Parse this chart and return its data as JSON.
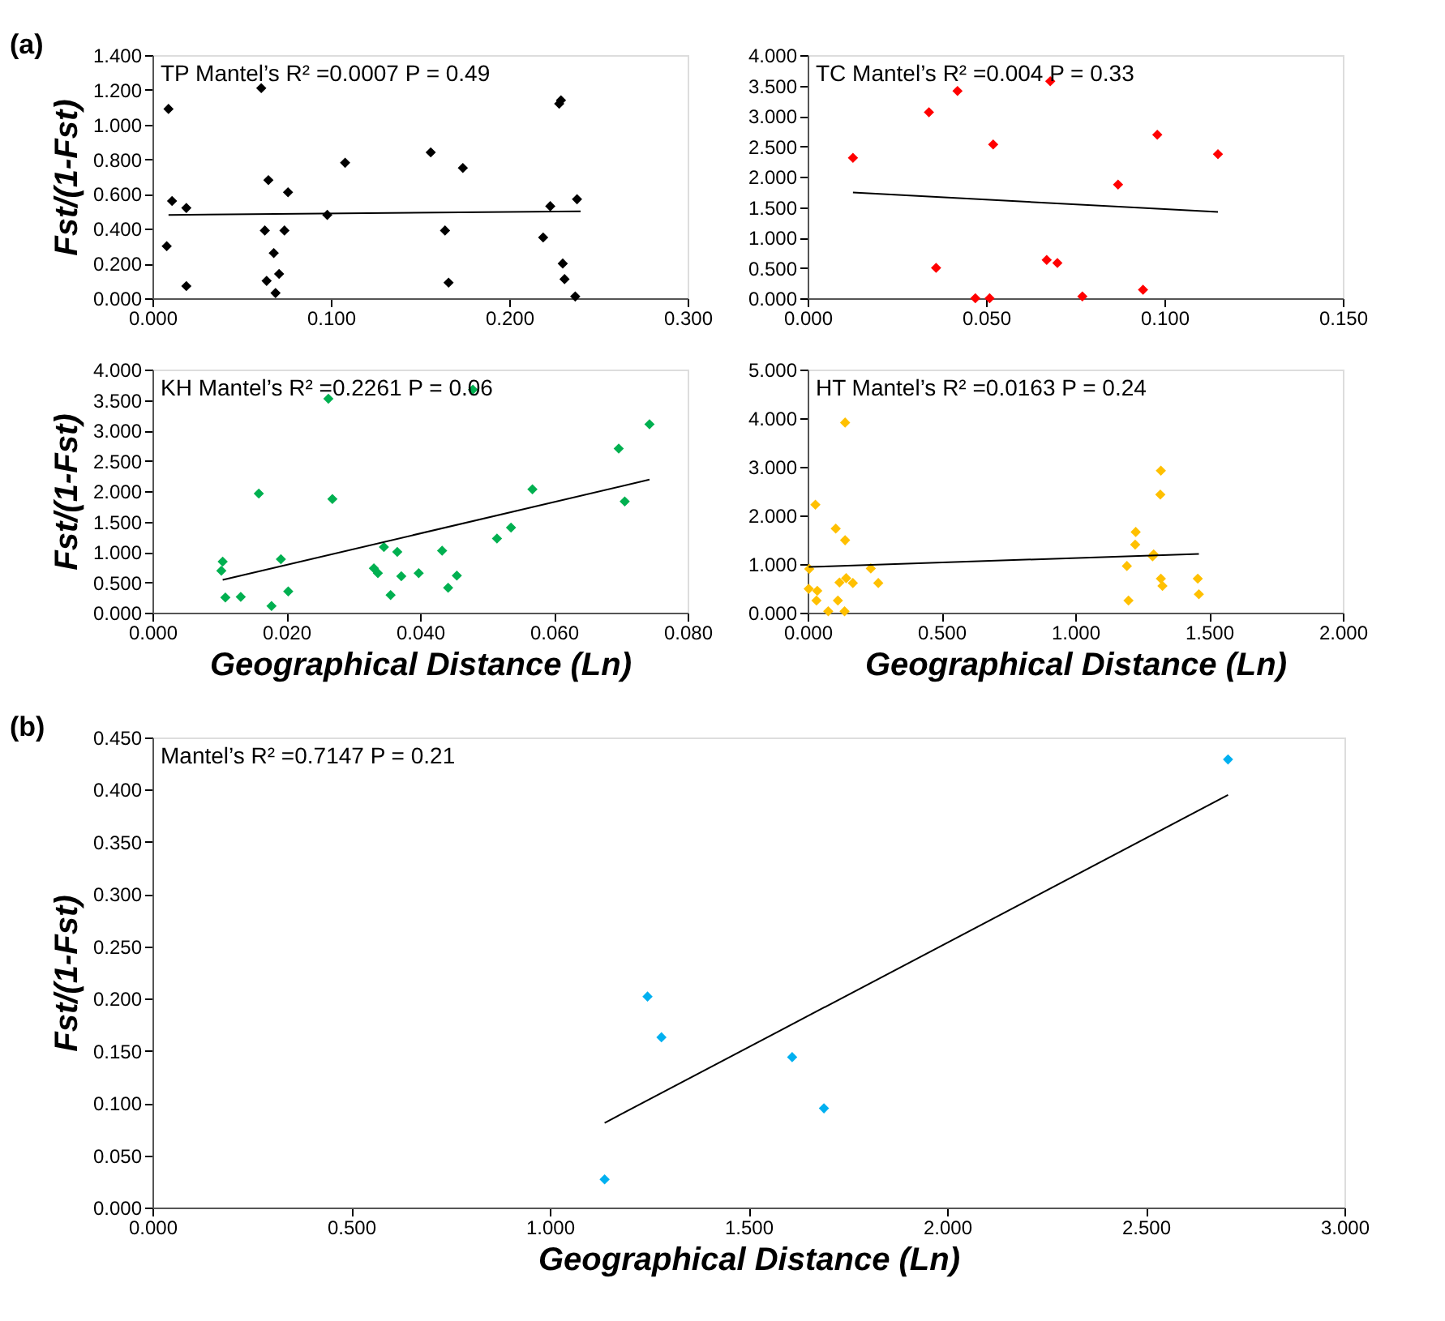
{
  "chart_data": [
    {
      "type": "scatter",
      "ylabel": "Fst/(1-Fst)",
      "annotations": [
        "(a)",
        "TP Mantel’s R² =0.0007 P = 0.49"
      ],
      "grid": false,
      "xlim": [
        0,
        0.3
      ],
      "xticks": [
        {
          "value": 0,
          "label": "0.000"
        },
        {
          "value": 0.1,
          "label": "0.100"
        },
        {
          "value": 0.2,
          "label": "0.200"
        },
        {
          "value": 0.3,
          "label": "0.300"
        }
      ],
      "ylim": [
        0,
        1.4
      ],
      "yticks": [
        {
          "value": 0,
          "label": "0.000"
        },
        {
          "value": 0.2,
          "label": "0.200"
        },
        {
          "value": 0.4,
          "label": "0.400"
        },
        {
          "value": 0.6,
          "label": "0.600"
        },
        {
          "value": 0.8,
          "label": "0.800"
        },
        {
          "value": 1.0,
          "label": "1.000"
        },
        {
          "value": 1.2,
          "label": "1.200"
        },
        {
          "value": 1.4,
          "label": "1.400"
        }
      ],
      "series": [
        {
          "marker": "diamond",
          "color": "#000000",
          "x": [
            0.008,
            0.009,
            0.011,
            0.019,
            0.019,
            0.061,
            0.065,
            0.063,
            0.068,
            0.064,
            0.071,
            0.069,
            0.074,
            0.076,
            0.098,
            0.108,
            0.156,
            0.174,
            0.164,
            0.166,
            0.219,
            0.223,
            0.228,
            0.229,
            0.23,
            0.231,
            0.238,
            0.237
          ],
          "values": [
            0.3,
            1.09,
            0.56,
            0.52,
            0.07,
            1.21,
            0.68,
            0.39,
            0.26,
            0.1,
            0.14,
            0.03,
            0.39,
            0.61,
            0.48,
            0.78,
            0.84,
            0.75,
            0.39,
            0.09,
            0.35,
            0.53,
            1.12,
            1.14,
            0.2,
            0.11,
            0.57,
            0.01
          ]
        },
        {
          "type": "line",
          "marker": "none",
          "color": "#000000",
          "x": [
            0.009,
            0.24
          ],
          "values": [
            0.48,
            0.5
          ]
        }
      ]
    },
    {
      "type": "scatter",
      "annotations": [
        "TC Mantel’s R² =0.004 P = 0.33"
      ],
      "grid": false,
      "xlim": [
        0,
        0.15
      ],
      "xticks": [
        {
          "value": 0,
          "label": "0.000"
        },
        {
          "value": 0.05,
          "label": "0.050"
        },
        {
          "value": 0.1,
          "label": "0.100"
        },
        {
          "value": 0.15,
          "label": "0.150"
        }
      ],
      "ylim": [
        0,
        4
      ],
      "yticks": [
        {
          "value": 0,
          "label": "0.000"
        },
        {
          "value": 0.5,
          "label": "0.500"
        },
        {
          "value": 1,
          "label": "1.000"
        },
        {
          "value": 1.5,
          "label": "1.500"
        },
        {
          "value": 2,
          "label": "2.000"
        },
        {
          "value": 2.5,
          "label": "2.500"
        },
        {
          "value": 3,
          "label": "3.000"
        },
        {
          "value": 3.5,
          "label": "3.500"
        },
        {
          "value": 4,
          "label": "4.000"
        }
      ],
      "series": [
        {
          "marker": "diamond",
          "color": "#ff0000",
          "x": [
            0.0127,
            0.034,
            0.042,
            0.036,
            0.052,
            0.047,
            0.051,
            0.068,
            0.067,
            0.07,
            0.077,
            0.087,
            0.094,
            0.098,
            0.115
          ],
          "values": [
            2.31,
            3.06,
            3.41,
            0.5,
            2.53,
            0.0,
            0.0,
            3.57,
            0.63,
            0.58,
            0.03,
            1.87,
            0.14,
            2.69,
            2.37
          ]
        },
        {
          "type": "line",
          "marker": "none",
          "color": "#000000",
          "x": [
            0.0127,
            0.115
          ],
          "values": [
            1.74,
            1.42
          ]
        }
      ]
    },
    {
      "type": "scatter",
      "xlabel": "Geographical Distance (Ln)",
      "ylabel": "Fst/(1-Fst)",
      "annotations": [
        "KH Mantel’s R² =0.2261 P = 0.06"
      ],
      "grid": false,
      "xlim": [
        0,
        0.08
      ],
      "xticks": [
        {
          "value": 0,
          "label": "0.000"
        },
        {
          "value": 0.02,
          "label": "0.020"
        },
        {
          "value": 0.04,
          "label": "0.040"
        },
        {
          "value": 0.06,
          "label": "0.060"
        },
        {
          "value": 0.08,
          "label": "0.080"
        }
      ],
      "ylim": [
        0,
        4
      ],
      "yticks": [
        {
          "value": 0,
          "label": "0.000"
        },
        {
          "value": 0.5,
          "label": "0.500"
        },
        {
          "value": 1,
          "label": "1.000"
        },
        {
          "value": 1.5,
          "label": "1.500"
        },
        {
          "value": 2,
          "label": "2.000"
        },
        {
          "value": 2.5,
          "label": "2.500"
        },
        {
          "value": 3,
          "label": "3.000"
        },
        {
          "value": 3.5,
          "label": "3.500"
        },
        {
          "value": 4,
          "label": "4.000"
        }
      ],
      "series": [
        {
          "marker": "diamond",
          "color": "#00b050",
          "x": [
            0.0105,
            0.0103,
            0.0109,
            0.0132,
            0.0159,
            0.0178,
            0.0192,
            0.0203,
            0.0263,
            0.0269,
            0.0331,
            0.0337,
            0.0346,
            0.0356,
            0.0366,
            0.0372,
            0.0398,
            0.0433,
            0.0442,
            0.0455,
            0.0479,
            0.0515,
            0.0536,
            0.0568,
            0.0697,
            0.0706,
            0.0743
          ],
          "values": [
            0.84,
            0.69,
            0.25,
            0.26,
            1.96,
            0.11,
            0.88,
            0.35,
            3.52,
            1.87,
            0.73,
            0.65,
            1.08,
            0.29,
            1.0,
            0.6,
            0.65,
            1.02,
            0.41,
            0.61,
            3.67,
            1.22,
            1.4,
            2.03,
            2.7,
            1.83,
            3.1
          ]
        },
        {
          "type": "line",
          "marker": "none",
          "color": "#000000",
          "x": [
            0.0105,
            0.0743
          ],
          "values": [
            0.54,
            2.19
          ]
        }
      ]
    },
    {
      "type": "scatter",
      "xlabel": "Geographical Distance (Ln)",
      "annotations": [
        "HT Mantel’s R² =0.0163 P = 0.24"
      ],
      "grid": false,
      "xlim": [
        0,
        2
      ],
      "xticks": [
        {
          "value": 0,
          "label": "0.000"
        },
        {
          "value": 0.5,
          "label": "0.500"
        },
        {
          "value": 1,
          "label": "1.000"
        },
        {
          "value": 1.5,
          "label": "1.500"
        },
        {
          "value": 2,
          "label": "2.000"
        }
      ],
      "ylim": [
        0,
        5
      ],
      "yticks": [
        {
          "value": 0,
          "label": "0.000"
        },
        {
          "value": 1,
          "label": "1.000"
        },
        {
          "value": 2,
          "label": "2.000"
        },
        {
          "value": 3,
          "label": "3.000"
        },
        {
          "value": 4,
          "label": "4.000"
        },
        {
          "value": 5,
          "label": "5.000"
        }
      ],
      "series": [
        {
          "marker": "diamond",
          "color": "#ffc000",
          "x": [
            0.004,
            0.006,
            0.029,
            0.036,
            0.033,
            0.077,
            0.105,
            0.113,
            0.119,
            0.14,
            0.14,
            0.144,
            0.138,
            0.169,
            0.236,
            0.264,
            1.193,
            1.199,
            1.224,
            1.226,
            1.289,
            1.293,
            1.32,
            1.318,
            1.32,
            1.326,
            1.458,
            1.462
          ],
          "values": [
            0.49,
            0.9,
            2.22,
            0.45,
            0.25,
            0.03,
            1.73,
            0.25,
            0.62,
            3.91,
            1.49,
            0.71,
            0.03,
            0.61,
            0.91,
            0.61,
            0.96,
            0.25,
            1.4,
            1.66,
            1.16,
            1.2,
            2.92,
            2.43,
            0.7,
            0.55,
            0.7,
            0.38
          ]
        },
        {
          "type": "line",
          "marker": "none",
          "color": "#000000",
          "x": [
            0.004,
            1.462
          ],
          "values": [
            0.94,
            1.21
          ]
        }
      ]
    },
    {
      "type": "scatter",
      "xlabel": "Geographical Distance (Ln)",
      "ylabel": "Fst/(1-Fst)",
      "annotations": [
        "(b)",
        "Mantel’s R² =0.7147 P = 0.21"
      ],
      "grid": false,
      "xlim": [
        0,
        3
      ],
      "xticks": [
        {
          "value": 0,
          "label": "0.000"
        },
        {
          "value": 0.5,
          "label": "0.500"
        },
        {
          "value": 1,
          "label": "1.000"
        },
        {
          "value": 1.5,
          "label": "1.500"
        },
        {
          "value": 2,
          "label": "2.000"
        },
        {
          "value": 2.5,
          "label": "2.500"
        },
        {
          "value": 3,
          "label": "3.000"
        }
      ],
      "ylim": [
        0,
        0.45
      ],
      "yticks": [
        {
          "value": 0,
          "label": "0.000"
        },
        {
          "value": 0.05,
          "label": "0.050"
        },
        {
          "value": 0.1,
          "label": "0.100"
        },
        {
          "value": 0.15,
          "label": "0.150"
        },
        {
          "value": 0.2,
          "label": "0.200"
        },
        {
          "value": 0.25,
          "label": "0.250"
        },
        {
          "value": 0.3,
          "label": "0.300"
        },
        {
          "value": 0.35,
          "label": "0.350"
        },
        {
          "value": 0.4,
          "label": "0.400"
        },
        {
          "value": 0.45,
          "label": "0.450"
        }
      ],
      "series": [
        {
          "marker": "diamond",
          "color": "#00b0f0",
          "x": [
            1.138,
            1.246,
            1.281,
            1.61,
            1.69,
            2.707
          ],
          "values": [
            0.027,
            0.202,
            0.163,
            0.144,
            0.095,
            0.429
          ]
        },
        {
          "type": "line",
          "marker": "none",
          "color": "#000000",
          "x": [
            1.138,
            2.707
          ],
          "values": [
            0.081,
            0.395
          ]
        }
      ]
    }
  ]
}
